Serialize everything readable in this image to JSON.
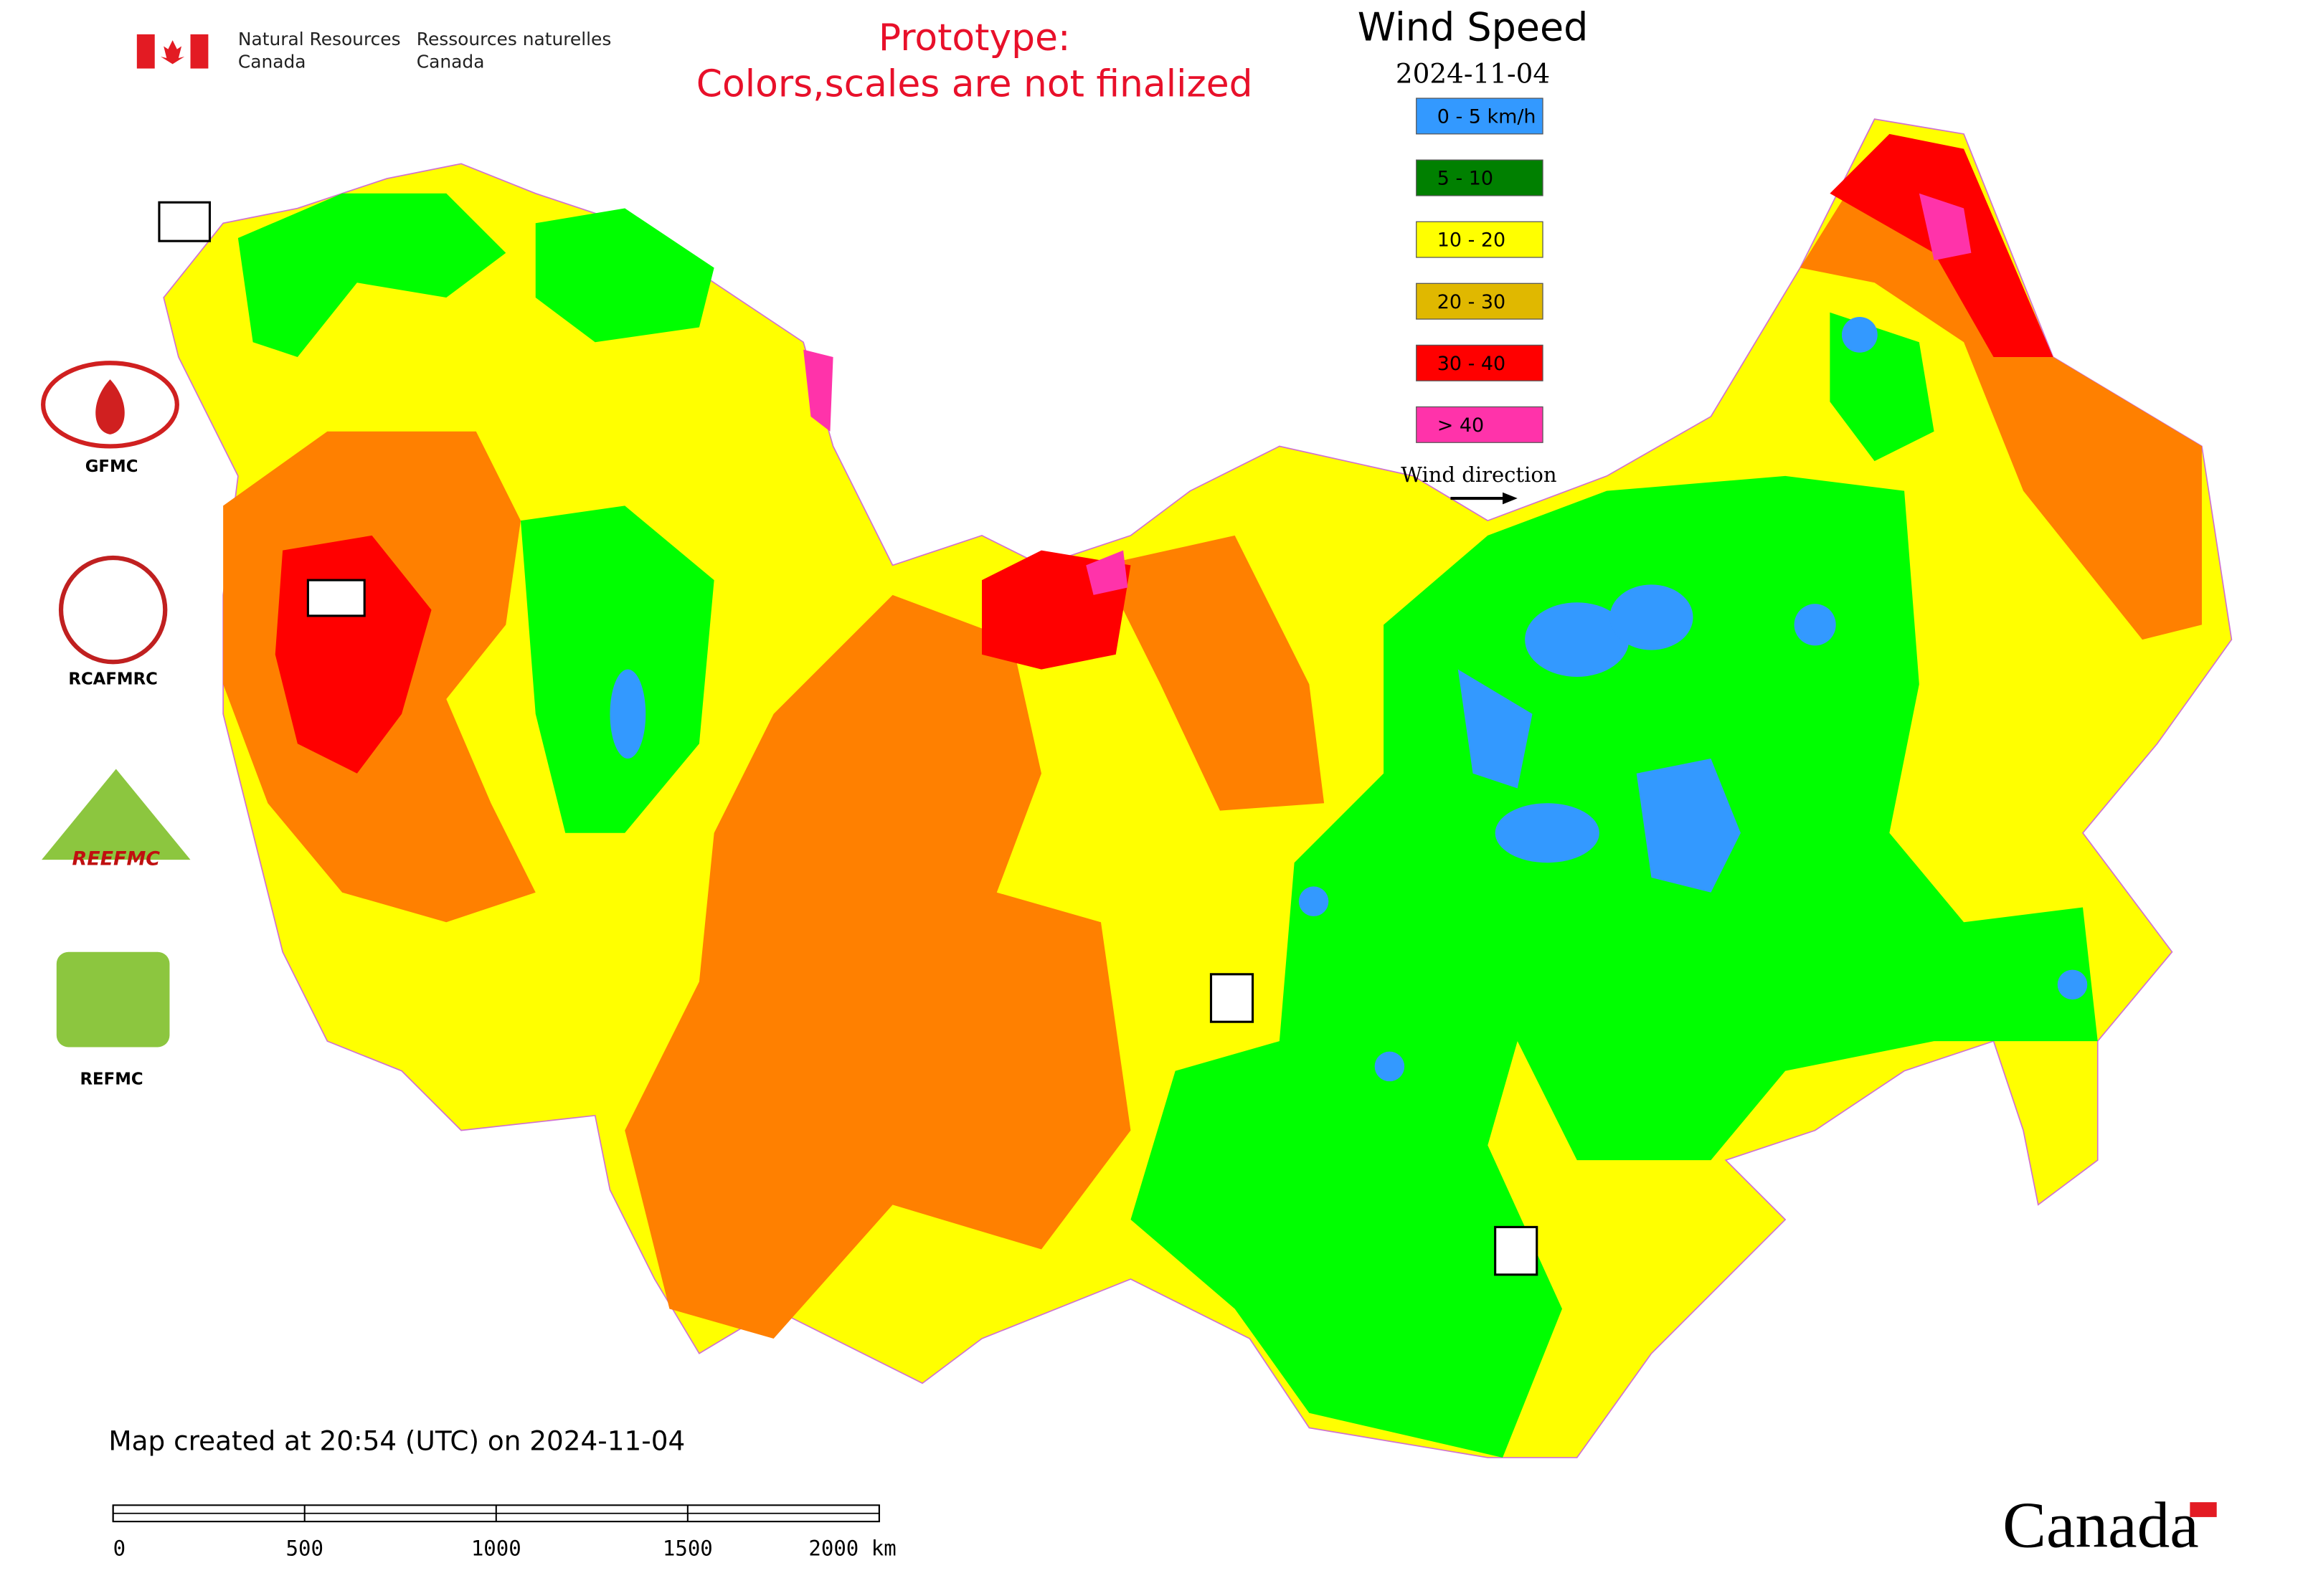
{
  "header": {
    "agency_en": [
      "Natural Resources",
      "Canada"
    ],
    "agency_fr": [
      "Ressources naturelles",
      "Canada"
    ],
    "notice": [
      "Prototype:",
      "Colors,scales are not finalized"
    ]
  },
  "legend": {
    "title": "Wind Speed",
    "date": "2024-11-04",
    "items": [
      {
        "label": "0 - 5 km/h",
        "color": "#3399ff"
      },
      {
        "label": "5 - 10",
        "color": "#008000"
      },
      {
        "label": "10 - 20",
        "color": "#ffff00"
      },
      {
        "label": "20 - 30",
        "color": "#e0b800"
      },
      {
        "label": "30 - 40",
        "color": "#ff0000"
      },
      {
        "label": "> 40",
        "color": "#ff33aa"
      }
    ],
    "direction": "Wind direction"
  },
  "logos": [
    "GFMC",
    "RCAFMRC",
    "REEFMC",
    "REFMC"
  ],
  "footer": {
    "created": "Map created at 20:54 (UTC) on 2024-11-04",
    "wordmark": "Canada"
  },
  "scale_bar": {
    "ticks": [
      0,
      500,
      1000,
      1500,
      {
        "value": 2000,
        "label": "2000 km"
      }
    ]
  }
}
